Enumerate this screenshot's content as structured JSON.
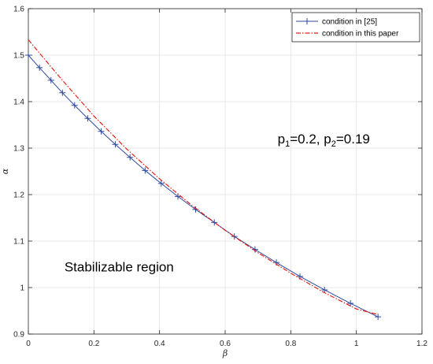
{
  "chart_data": {
    "type": "line",
    "xlabel": "β",
    "ylabel": "α",
    "xlim": [
      0,
      1.2
    ],
    "ylim": [
      0.9,
      1.6
    ],
    "xticks": [
      "0",
      "0.2",
      "0.4",
      "0.6",
      "0.8",
      "1",
      "1.2"
    ],
    "yticks": [
      "0.9",
      "1",
      "1.1",
      "1.2",
      "1.3",
      "1.4",
      "1.5",
      "1.6"
    ],
    "grid": true,
    "legend_position": "top-right",
    "series": [
      {
        "name": "condition in [25]",
        "color": "#2e4a9e",
        "line_style": "solid",
        "marker": "plus",
        "x": [
          0,
          0.034,
          0.069,
          0.104,
          0.141,
          0.181,
          0.222,
          0.265,
          0.31,
          0.356,
          0.405,
          0.456,
          0.51,
          0.567,
          0.628,
          0.691,
          0.756,
          0.828,
          0.903,
          0.982,
          1.066
        ],
        "y": [
          1.5,
          1.473,
          1.446,
          1.419,
          1.392,
          1.364,
          1.336,
          1.308,
          1.28,
          1.252,
          1.224,
          1.196,
          1.168,
          1.14,
          1.11,
          1.082,
          1.054,
          1.024,
          0.995,
          0.966,
          0.937
        ]
      },
      {
        "name": "condition in this paper",
        "color": "#e0201a",
        "line_style": "dashdot",
        "marker": "none",
        "x": [
          0,
          0.1,
          0.2,
          0.3,
          0.4,
          0.5,
          0.6,
          0.7,
          0.8,
          0.9,
          1.0,
          1.066
        ],
        "y": [
          1.533,
          1.449,
          1.369,
          1.298,
          1.234,
          1.176,
          1.123,
          1.075,
          1.031,
          0.99,
          0.954,
          0.942
        ]
      }
    ],
    "annotations": {
      "params": {
        "p": "p",
        "sub1": "1",
        "val1": "=0.2, ",
        "sub2": "2",
        "val2": "=0.19",
        "at": [
          0.76,
          1.31
        ]
      },
      "region": {
        "text": "Stabilizable region",
        "at": [
          0.11,
          1.035
        ]
      }
    }
  }
}
